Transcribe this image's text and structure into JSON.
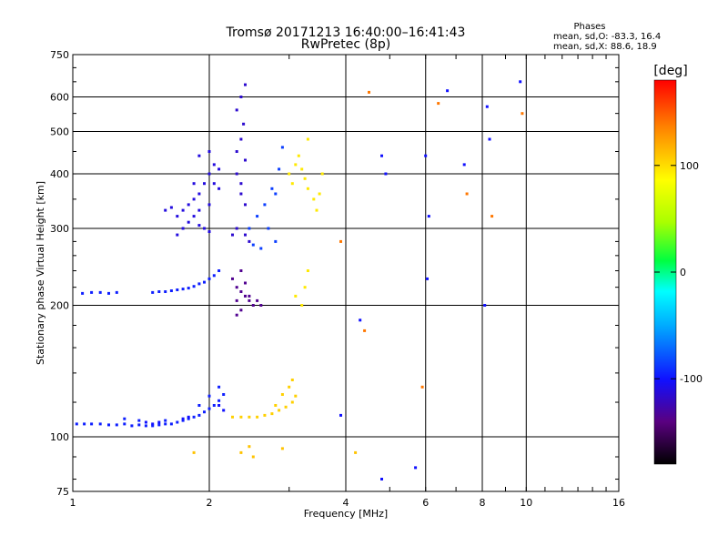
{
  "header": {
    "title_line1": "Tromsø 20171213 16:40:00–16:41:43",
    "title_line2": "RwPretec (8p)",
    "info_title": "Phases",
    "info_line1": "mean, sd,O: -83.3, 16.4",
    "info_line2": "mean, sd,X: 88.6, 18.9"
  },
  "chart_data": {
    "type": "scatter",
    "xlabel": "Frequency [MHz]",
    "ylabel": "Stationary phase Virtual Height [km]",
    "xscale": "log",
    "yscale": "log",
    "xlim": [
      1,
      16
    ],
    "ylim": [
      75,
      750
    ],
    "xticks": [
      1,
      2,
      4,
      6,
      8,
      10,
      16
    ],
    "yticks": [
      75,
      100,
      200,
      300,
      400,
      500,
      600,
      750
    ],
    "grid": true,
    "colorbar": {
      "label": "[deg]",
      "range": [
        -180,
        180
      ],
      "ticks": [
        -100,
        0,
        100
      ]
    },
    "series": [
      {
        "color_value": -95,
        "points": [
          [
            1.02,
            107
          ],
          [
            1.06,
            107
          ],
          [
            1.1,
            107
          ],
          [
            1.15,
            107
          ],
          [
            1.2,
            106.5
          ],
          [
            1.25,
            106.5
          ],
          [
            1.3,
            107
          ],
          [
            1.35,
            106
          ],
          [
            1.4,
            106.5
          ],
          [
            1.45,
            106
          ],
          [
            1.5,
            106
          ],
          [
            1.55,
            106.5
          ],
          [
            1.6,
            107
          ],
          [
            1.65,
            107
          ],
          [
            1.7,
            108
          ],
          [
            1.75,
            109
          ],
          [
            1.8,
            110
          ],
          [
            1.85,
            111
          ],
          [
            1.9,
            112
          ],
          [
            1.95,
            114
          ],
          [
            2.0,
            116
          ],
          [
            2.05,
            118
          ],
          [
            2.1,
            121
          ],
          [
            2.15,
            125
          ],
          [
            1.3,
            110
          ],
          [
            1.4,
            109
          ],
          [
            1.6,
            109
          ],
          [
            1.9,
            118
          ],
          [
            2.0,
            124
          ],
          [
            2.1,
            130
          ]
        ]
      },
      {
        "color_value": -95,
        "points": [
          [
            1.05,
            213
          ],
          [
            1.1,
            214
          ],
          [
            1.15,
            214
          ],
          [
            1.2,
            213
          ],
          [
            1.25,
            214
          ],
          [
            1.5,
            214
          ],
          [
            1.55,
            215
          ],
          [
            1.6,
            215
          ],
          [
            1.65,
            216
          ],
          [
            1.7,
            217
          ],
          [
            1.75,
            218
          ],
          [
            1.8,
            219
          ],
          [
            1.85,
            221
          ],
          [
            1.9,
            224
          ],
          [
            1.95,
            226
          ],
          [
            2.0,
            230
          ],
          [
            2.05,
            234
          ],
          [
            2.1,
            240
          ]
        ]
      },
      {
        "color_value": -110,
        "points": [
          [
            1.6,
            330
          ],
          [
            1.65,
            335
          ],
          [
            1.7,
            320
          ],
          [
            1.75,
            330
          ],
          [
            1.8,
            340
          ],
          [
            1.85,
            350
          ],
          [
            1.9,
            360
          ],
          [
            1.95,
            380
          ],
          [
            2.0,
            400
          ],
          [
            2.05,
            420
          ],
          [
            2.1,
            410
          ],
          [
            1.8,
            310
          ],
          [
            1.85,
            320
          ],
          [
            1.9,
            305
          ],
          [
            1.95,
            300
          ],
          [
            2.0,
            295
          ],
          [
            1.75,
            300
          ],
          [
            1.7,
            290
          ],
          [
            1.9,
            440
          ],
          [
            2.0,
            450
          ],
          [
            2.05,
            380
          ],
          [
            2.1,
            370
          ],
          [
            1.85,
            380
          ],
          [
            1.9,
            330
          ],
          [
            2.0,
            340
          ]
        ]
      },
      {
        "color_value": -115,
        "points": [
          [
            2.3,
            560
          ],
          [
            2.35,
            600
          ],
          [
            2.4,
            640
          ],
          [
            2.38,
            520
          ],
          [
            2.35,
            480
          ],
          [
            2.4,
            430
          ],
          [
            2.3,
            400
          ],
          [
            2.35,
            360
          ],
          [
            2.4,
            340
          ],
          [
            2.3,
            300
          ],
          [
            2.25,
            290
          ],
          [
            2.4,
            290
          ],
          [
            2.45,
            280
          ],
          [
            2.35,
            380
          ],
          [
            2.3,
            450
          ]
        ]
      },
      {
        "color_value": -85,
        "points": [
          [
            2.45,
            300
          ],
          [
            2.55,
            320
          ],
          [
            2.65,
            340
          ],
          [
            2.75,
            370
          ],
          [
            2.85,
            410
          ],
          [
            2.9,
            460
          ],
          [
            2.8,
            280
          ],
          [
            2.6,
            270
          ],
          [
            2.5,
            275
          ],
          [
            2.7,
            300
          ],
          [
            2.8,
            360
          ]
        ]
      },
      {
        "color_value": -135,
        "points": [
          [
            2.25,
            230
          ],
          [
            2.3,
            220
          ],
          [
            2.35,
            215
          ],
          [
            2.4,
            210
          ],
          [
            2.45,
            205
          ],
          [
            2.5,
            200
          ],
          [
            2.35,
            195
          ],
          [
            2.3,
            190
          ],
          [
            2.4,
            225
          ],
          [
            2.45,
            210
          ],
          [
            2.55,
            205
          ],
          [
            2.6,
            200
          ],
          [
            2.3,
            205
          ],
          [
            2.35,
            240
          ]
        ]
      },
      {
        "color_value": 105,
        "points": [
          [
            2.25,
            111
          ],
          [
            2.35,
            111
          ],
          [
            2.45,
            111
          ],
          [
            2.55,
            111
          ],
          [
            2.65,
            112
          ],
          [
            2.75,
            113
          ],
          [
            2.85,
            115
          ],
          [
            2.95,
            117
          ],
          [
            3.05,
            120
          ],
          [
            3.1,
            124
          ],
          [
            3.0,
            130
          ],
          [
            2.9,
            125
          ],
          [
            2.8,
            118
          ],
          [
            3.05,
            135
          ]
        ]
      },
      {
        "color_value": 95,
        "points": [
          [
            3.0,
            400
          ],
          [
            3.05,
            380
          ],
          [
            3.1,
            420
          ],
          [
            3.15,
            440
          ],
          [
            3.2,
            410
          ],
          [
            3.25,
            390
          ],
          [
            3.3,
            370
          ],
          [
            3.45,
            330
          ],
          [
            3.5,
            360
          ],
          [
            3.55,
            400
          ],
          [
            3.4,
            350
          ],
          [
            3.2,
            200
          ],
          [
            3.25,
            220
          ],
          [
            3.3,
            240
          ],
          [
            3.1,
            210
          ],
          [
            3.3,
            480
          ]
        ]
      },
      {
        "color_value": -100,
        "points": [
          [
            1.45,
            108
          ],
          [
            1.5,
            107
          ],
          [
            1.55,
            108
          ],
          [
            1.75,
            110
          ],
          [
            1.8,
            111
          ],
          [
            2.1,
            118
          ],
          [
            2.15,
            115
          ]
        ]
      },
      {
        "color_value": 110,
        "points": [
          [
            2.35,
            92
          ],
          [
            2.45,
            95
          ],
          [
            2.5,
            90
          ],
          [
            2.9,
            94
          ],
          [
            1.85,
            92
          ],
          [
            4.2,
            92
          ]
        ]
      },
      {
        "color_value": -100,
        "points": [
          [
            4.3,
            185
          ],
          [
            4.8,
            440
          ],
          [
            4.9,
            400
          ],
          [
            4.8,
            80
          ],
          [
            5.7,
            85
          ],
          [
            6.0,
            440
          ],
          [
            6.05,
            230
          ],
          [
            6.1,
            320
          ],
          [
            7.3,
            420
          ],
          [
            8.2,
            570
          ],
          [
            8.3,
            480
          ],
          [
            9.7,
            650
          ],
          [
            6.7,
            620
          ],
          [
            8.1,
            200
          ],
          [
            3.9,
            112
          ]
        ]
      },
      {
        "color_value": 140,
        "points": [
          [
            4.5,
            615
          ],
          [
            3.9,
            280
          ],
          [
            4.4,
            175
          ],
          [
            7.4,
            360
          ],
          [
            8.4,
            320
          ],
          [
            5.9,
            130
          ],
          [
            6.4,
            580
          ],
          [
            9.8,
            550
          ]
        ]
      }
    ]
  }
}
